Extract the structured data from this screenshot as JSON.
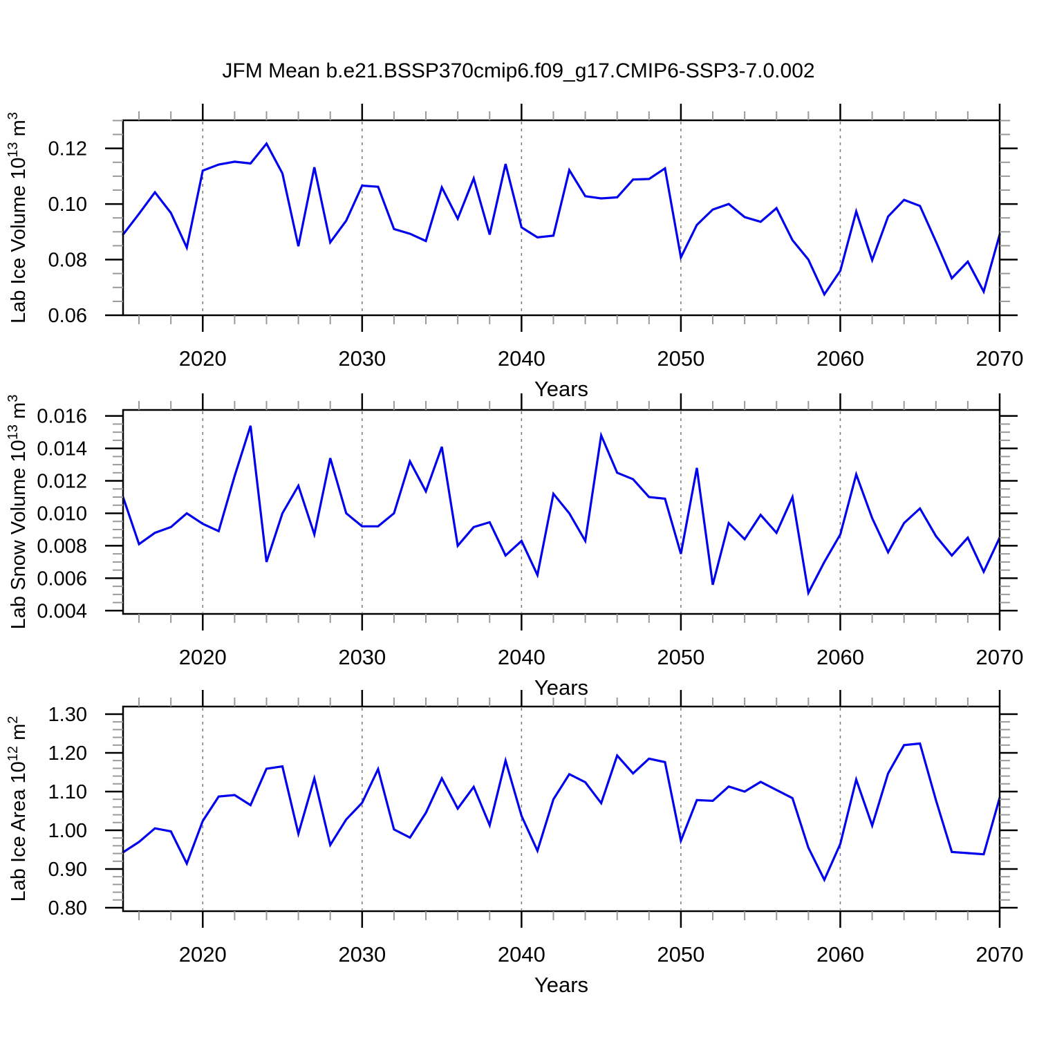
{
  "title": "JFM Mean b.e21.BSSP370cmip6.f09_g17.CMIP6-SSP3-7.0.002",
  "style": {
    "line_color": "#0000EE",
    "grid_color": "#777777",
    "axis_color": "#000000",
    "minor_tick_color": "#999999"
  },
  "x_axis": {
    "label": "Years",
    "start_year": 2015,
    "end_year": 2070,
    "major_ticks": [
      2020,
      2030,
      2040,
      2050,
      2060,
      2070
    ],
    "major_tick_labels": [
      "2020",
      "2030",
      "2040",
      "2050",
      "2060",
      "2070"
    ],
    "minor_tick_interval": 2,
    "gridlines_at": [
      2020,
      2030,
      2040,
      2050,
      2060
    ],
    "years": [
      2015,
      2016,
      2017,
      2018,
      2019,
      2020,
      2021,
      2022,
      2023,
      2024,
      2025,
      2026,
      2027,
      2028,
      2029,
      2030,
      2031,
      2032,
      2033,
      2034,
      2035,
      2036,
      2037,
      2038,
      2039,
      2040,
      2041,
      2042,
      2043,
      2044,
      2045,
      2046,
      2047,
      2048,
      2049,
      2050,
      2051,
      2052,
      2053,
      2054,
      2055,
      2056,
      2057,
      2058,
      2059,
      2060,
      2061,
      2062,
      2063,
      2064,
      2065,
      2066,
      2067,
      2068,
      2069,
      2070
    ]
  },
  "chart_data": [
    {
      "type": "line",
      "name": "lab-ice-volume",
      "ylabel_text": "Lab Ice Volume 10^13 m^3",
      "ylabel_parts": [
        [
          "t",
          "Lab Ice Volume 10"
        ],
        [
          "s",
          "13"
        ],
        [
          "t",
          " m"
        ],
        [
          "s",
          "3"
        ]
      ],
      "ylim": [
        0.06,
        0.1301
      ],
      "y_major_ticks": [
        0.12,
        0.1,
        0.08,
        0.06
      ],
      "y_tick_labels": [
        "0.12",
        "0.10",
        "0.08",
        "0.06"
      ],
      "y_minor_step": 0.005,
      "x_start": 2015,
      "values": [
        0.089,
        0.0965,
        0.1042,
        0.0968,
        0.0843,
        0.112,
        0.1142,
        0.1152,
        0.1146,
        0.1217,
        0.111,
        0.0848,
        0.1132,
        0.0862,
        0.094,
        0.1066,
        0.1062,
        0.091,
        0.0893,
        0.0867,
        0.106,
        0.0947,
        0.1092,
        0.089,
        0.1144,
        0.0916,
        0.088,
        0.0886,
        0.1122,
        0.1028,
        0.102,
        0.1024,
        0.1088,
        0.109,
        0.1128,
        0.0808,
        0.0925,
        0.098,
        0.1,
        0.0953,
        0.0936,
        0.0985,
        0.087,
        0.08,
        0.0675,
        0.076,
        0.0973,
        0.0798,
        0.0955,
        0.1015,
        0.0993,
        0.0865,
        0.0733,
        0.0793,
        0.0685,
        0.089
      ]
    },
    {
      "type": "line",
      "name": "lab-snow-volume",
      "ylabel_text": "Lab Snow Volume 10^13 m^3",
      "ylabel_parts": [
        [
          "t",
          "Lab Snow Volume 10"
        ],
        [
          "s",
          "13"
        ],
        [
          "t",
          " m"
        ],
        [
          "s",
          "3"
        ]
      ],
      "ylim": [
        0.0038,
        0.01637
      ],
      "y_major_ticks": [
        0.016,
        0.014,
        0.012,
        0.01,
        0.008,
        0.006,
        0.004
      ],
      "y_tick_labels": [
        "0.016",
        "0.014",
        "0.012",
        "0.010",
        "0.008",
        "0.006",
        "0.004"
      ],
      "y_minor_step": 0.0005,
      "x_start": 2015,
      "values": [
        0.011,
        0.0081,
        0.0088,
        0.00915,
        0.01,
        0.00935,
        0.0089,
        0.0123,
        0.0154,
        0.007,
        0.01,
        0.0117,
        0.0087,
        0.0134,
        0.01,
        0.0092,
        0.0092,
        0.01,
        0.0132,
        0.01135,
        0.0141,
        0.008,
        0.00915,
        0.00945,
        0.0074,
        0.0083,
        0.0062,
        0.0112,
        0.01,
        0.0083,
        0.0148,
        0.0125,
        0.0121,
        0.011,
        0.0109,
        0.0075,
        0.0128,
        0.0056,
        0.0094,
        0.0084,
        0.0099,
        0.0088,
        0.011,
        0.0051,
        0.007,
        0.0087,
        0.0124,
        0.0097,
        0.0076,
        0.0094,
        0.0103,
        0.0086,
        0.0074,
        0.0085,
        0.0064,
        0.0085
      ]
    },
    {
      "type": "line",
      "name": "lab-ice-area",
      "ylabel_text": "Lab Ice Area 10^12 m^2",
      "ylabel_parts": [
        [
          "t",
          "Lab Ice Area 10"
        ],
        [
          "s",
          "12"
        ],
        [
          "t",
          " m"
        ],
        [
          "s",
          "2"
        ]
      ],
      "ylim": [
        0.791,
        1.3196
      ],
      "y_major_ticks": [
        1.3,
        1.2,
        1.1,
        1.0,
        0.9,
        0.8
      ],
      "y_tick_labels": [
        "1.30",
        "1.20",
        "1.10",
        "1.00",
        "0.90",
        "0.80"
      ],
      "y_minor_step": 0.02,
      "x_start": 2015,
      "values": [
        0.943,
        0.97,
        1.005,
        0.997,
        0.914,
        1.024,
        1.087,
        1.091,
        1.065,
        1.159,
        1.165,
        0.991,
        1.134,
        0.962,
        1.028,
        1.071,
        1.158,
        1.002,
        0.981,
        1.045,
        1.134,
        1.056,
        1.112,
        1.013,
        1.18,
        1.037,
        0.947,
        1.08,
        1.145,
        1.124,
        1.07,
        1.193,
        1.147,
        1.185,
        1.176,
        0.973,
        1.078,
        1.076,
        1.113,
        1.1,
        1.125,
        1.104,
        1.083,
        0.955,
        0.872,
        0.965,
        1.131,
        1.012,
        1.147,
        1.22,
        1.224,
        1.078,
        0.944,
        0.941,
        0.938,
        1.084
      ]
    }
  ]
}
